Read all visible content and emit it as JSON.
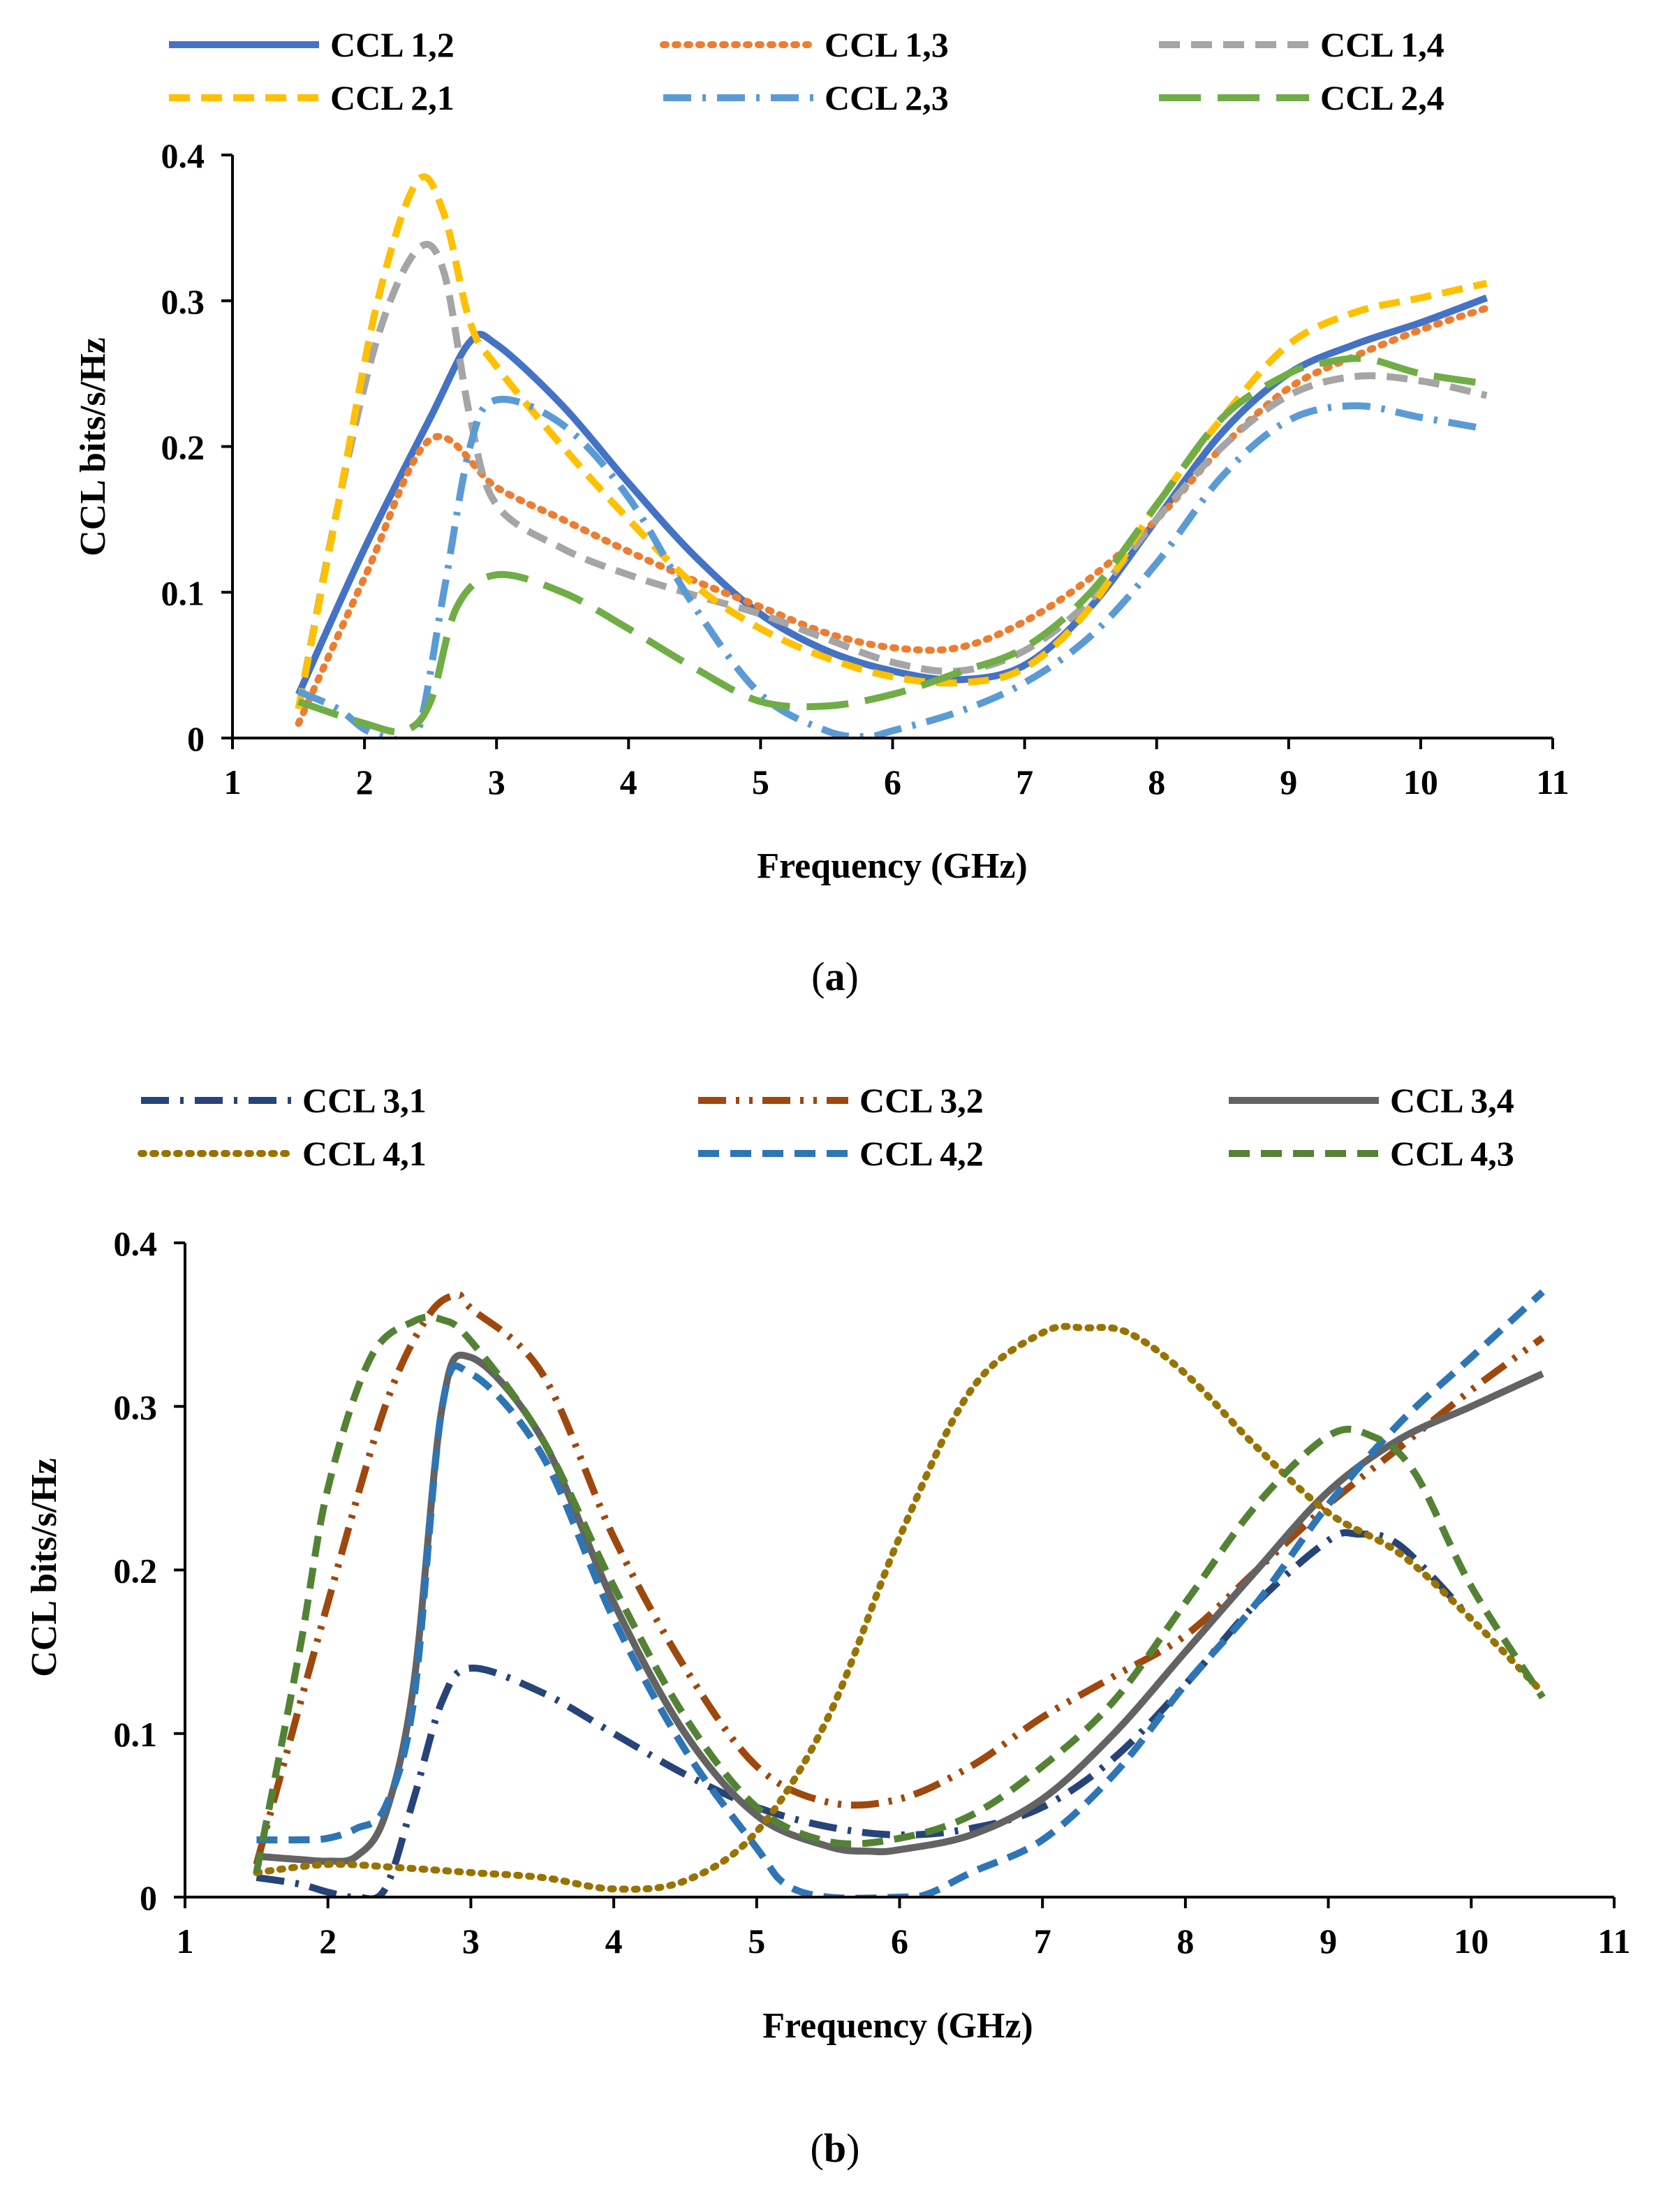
{
  "figure": {
    "captions": [
      "a",
      "b"
    ]
  },
  "chart_data": [
    {
      "type": "line",
      "panel": "(a)",
      "title": "",
      "xlabel": "Frequency (GHz)",
      "ylabel": "CCL bits/s/Hz",
      "xlim": [
        1,
        11
      ],
      "ylim": [
        0,
        0.4
      ],
      "xticks": [
        "1",
        "2",
        "3",
        "4",
        "5",
        "6",
        "7",
        "8",
        "9",
        "10",
        "11"
      ],
      "yticks": [
        "0",
        "0.1",
        "0.2",
        "0.3",
        "0.4"
      ],
      "grid": false,
      "legend_position": "top",
      "series": [
        {
          "name": "CCL 1,2",
          "color": "#4472C4",
          "style": "solid",
          "x": [
            1.5,
            2.0,
            2.5,
            2.8,
            3.0,
            3.5,
            4.0,
            4.5,
            5.0,
            5.5,
            6.0,
            6.5,
            7.0,
            7.5,
            8.0,
            8.5,
            9.0,
            9.5,
            10.0,
            10.5
          ],
          "y": [
            0.03,
            0.13,
            0.22,
            0.272,
            0.27,
            0.228,
            0.175,
            0.125,
            0.085,
            0.06,
            0.046,
            0.04,
            0.05,
            0.09,
            0.15,
            0.21,
            0.25,
            0.27,
            0.285,
            0.302
          ]
        },
        {
          "name": "CCL 1,3",
          "color": "#ED7D31",
          "style": "dotted",
          "x": [
            1.5,
            2.0,
            2.5,
            3.0,
            3.5,
            4.0,
            4.5,
            5.0,
            5.5,
            6.0,
            6.5,
            7.0,
            7.5,
            8.0,
            8.5,
            9.0,
            9.5,
            10.0,
            10.5
          ],
          "y": [
            0.01,
            0.11,
            0.205,
            0.172,
            0.15,
            0.128,
            0.108,
            0.09,
            0.072,
            0.062,
            0.062,
            0.08,
            0.11,
            0.15,
            0.2,
            0.24,
            0.262,
            0.28,
            0.295
          ]
        },
        {
          "name": "CCL 1,4",
          "color": "#A5A5A5",
          "style": "dashed",
          "x": [
            1.5,
            1.8,
            2.1,
            2.4,
            2.6,
            2.8,
            3.0,
            3.5,
            4.0,
            4.5,
            5.0,
            5.5,
            6.0,
            6.5,
            7.0,
            7.5,
            8.0,
            8.5,
            9.0,
            9.5,
            10.0,
            10.5
          ],
          "y": [
            0.02,
            0.16,
            0.275,
            0.335,
            0.32,
            0.22,
            0.16,
            0.13,
            0.112,
            0.098,
            0.085,
            0.068,
            0.052,
            0.046,
            0.06,
            0.095,
            0.15,
            0.2,
            0.235,
            0.248,
            0.245,
            0.235
          ]
        },
        {
          "name": "CCL 2,1",
          "color": "#FFC000",
          "style": "dashed",
          "x": [
            1.5,
            1.8,
            2.1,
            2.4,
            2.6,
            2.8,
            3.0,
            3.5,
            4.0,
            4.5,
            5.0,
            5.5,
            6.0,
            6.5,
            7.0,
            7.5,
            8.0,
            8.5,
            9.0,
            9.5,
            10.0,
            10.5
          ],
          "y": [
            0.02,
            0.16,
            0.3,
            0.382,
            0.36,
            0.285,
            0.255,
            0.2,
            0.15,
            0.105,
            0.075,
            0.055,
            0.042,
            0.038,
            0.048,
            0.09,
            0.16,
            0.22,
            0.27,
            0.292,
            0.302,
            0.312
          ]
        },
        {
          "name": "CCL 2,3",
          "color": "#5B9BD5",
          "style": "dashdot",
          "x": [
            1.5,
            1.8,
            2.0,
            2.2,
            2.4,
            2.6,
            2.8,
            3.0,
            3.5,
            4.0,
            4.5,
            5.0,
            5.5,
            5.8,
            6.0,
            6.5,
            7.0,
            7.5,
            8.0,
            8.5,
            9.0,
            9.5,
            10.0,
            10.5
          ],
          "y": [
            0.032,
            0.02,
            0.006,
            0.0,
            0.003,
            0.1,
            0.2,
            0.232,
            0.215,
            0.165,
            0.09,
            0.03,
            0.005,
            0.001,
            0.005,
            0.018,
            0.038,
            0.07,
            0.12,
            0.18,
            0.218,
            0.228,
            0.22,
            0.212
          ]
        },
        {
          "name": "CCL 2,4",
          "color": "#70AD47",
          "style": "longdash",
          "x": [
            1.5,
            2.0,
            2.3,
            2.5,
            2.7,
            3.0,
            3.5,
            4.0,
            4.5,
            5.0,
            5.5,
            6.0,
            6.5,
            7.0,
            7.5,
            8.0,
            8.5,
            9.0,
            9.3,
            9.6,
            10.0,
            10.5
          ],
          "y": [
            0.025,
            0.01,
            0.005,
            0.025,
            0.09,
            0.112,
            0.1,
            0.075,
            0.048,
            0.025,
            0.022,
            0.03,
            0.045,
            0.062,
            0.1,
            0.16,
            0.22,
            0.25,
            0.258,
            0.26,
            0.25,
            0.243
          ]
        }
      ]
    },
    {
      "type": "line",
      "panel": "(b)",
      "title": "",
      "xlabel": "Frequency (GHz)",
      "ylabel": "CCL bits/s/Hz",
      "xlim": [
        1,
        11
      ],
      "ylim": [
        0,
        0.4
      ],
      "xticks": [
        "1",
        "2",
        "3",
        "4",
        "5",
        "6",
        "7",
        "8",
        "9",
        "10",
        "11"
      ],
      "yticks": [
        "0",
        "0.1",
        "0.2",
        "0.3",
        "0.4"
      ],
      "grid": false,
      "legend_position": "top",
      "series": [
        {
          "name": "CCL 3,1",
          "color": "#264478",
          "style": "dashdot",
          "x": [
            1.5,
            1.8,
            2.0,
            2.2,
            2.4,
            2.6,
            2.8,
            3.0,
            3.5,
            4.0,
            4.5,
            5.0,
            5.5,
            6.0,
            6.5,
            7.0,
            7.5,
            8.0,
            8.5,
            9.0,
            9.2,
            9.5,
            10.0
          ],
          "y": [
            0.012,
            0.008,
            0.003,
            0.0,
            0.005,
            0.06,
            0.12,
            0.14,
            0.125,
            0.1,
            0.075,
            0.055,
            0.043,
            0.038,
            0.042,
            0.055,
            0.085,
            0.13,
            0.18,
            0.218,
            0.222,
            0.215,
            0.17
          ]
        },
        {
          "name": "CCL 3,2",
          "color": "#9E480E",
          "style": "dashdotdot",
          "x": [
            1.5,
            2.0,
            2.4,
            2.7,
            2.9,
            3.0,
            3.5,
            4.0,
            4.5,
            5.0,
            5.5,
            6.0,
            6.5,
            7.0,
            7.5,
            8.0,
            8.5,
            9.0,
            9.5,
            10.0,
            10.5
          ],
          "y": [
            0.02,
            0.18,
            0.3,
            0.355,
            0.368,
            0.36,
            0.32,
            0.22,
            0.14,
            0.08,
            0.058,
            0.06,
            0.08,
            0.11,
            0.135,
            0.16,
            0.2,
            0.24,
            0.275,
            0.31,
            0.342
          ]
        },
        {
          "name": "CCL 3,4",
          "color": "#636363",
          "style": "solid",
          "x": [
            1.5,
            1.8,
            2.0,
            2.2,
            2.4,
            2.6,
            2.8,
            3.0,
            3.5,
            4.0,
            4.5,
            5.0,
            5.5,
            5.8,
            6.0,
            6.5,
            7.0,
            7.5,
            8.0,
            8.5,
            9.0,
            9.5,
            10.0,
            10.5
          ],
          "y": [
            0.025,
            0.023,
            0.022,
            0.025,
            0.05,
            0.13,
            0.3,
            0.33,
            0.28,
            0.18,
            0.1,
            0.05,
            0.031,
            0.028,
            0.029,
            0.038,
            0.06,
            0.1,
            0.15,
            0.2,
            0.248,
            0.28,
            0.3,
            0.32
          ]
        },
        {
          "name": "CCL 4,1",
          "color": "#997300",
          "style": "dotted",
          "x": [
            1.5,
            2.0,
            2.5,
            3.0,
            3.5,
            4.0,
            4.5,
            5.0,
            5.5,
            6.0,
            6.5,
            7.0,
            7.3,
            7.6,
            8.0,
            8.5,
            9.0,
            9.5,
            10.0,
            10.5
          ],
          "y": [
            0.015,
            0.02,
            0.018,
            0.015,
            0.012,
            0.005,
            0.01,
            0.04,
            0.11,
            0.22,
            0.31,
            0.345,
            0.348,
            0.345,
            0.32,
            0.275,
            0.235,
            0.21,
            0.17,
            0.125
          ]
        },
        {
          "name": "CCL 4,2",
          "color": "#2E75B6",
          "style": "dashed",
          "x": [
            1.5,
            1.8,
            2.0,
            2.2,
            2.4,
            2.6,
            2.8,
            3.0,
            3.5,
            4.0,
            4.5,
            5.0,
            5.2,
            5.5,
            6.0,
            6.2,
            6.5,
            7.0,
            7.5,
            8.0,
            8.5,
            9.0,
            9.5,
            10.0,
            10.5
          ],
          "y": [
            0.035,
            0.035,
            0.036,
            0.042,
            0.055,
            0.12,
            0.3,
            0.32,
            0.27,
            0.17,
            0.09,
            0.03,
            0.008,
            0.0,
            0.0,
            0.002,
            0.015,
            0.035,
            0.075,
            0.13,
            0.18,
            0.24,
            0.29,
            0.33,
            0.37
          ]
        },
        {
          "name": "CCL 4,3",
          "color": "#548235",
          "style": "dashed",
          "x": [
            1.5,
            1.8,
            2.0,
            2.3,
            2.6,
            2.8,
            3.0,
            3.5,
            4.0,
            4.5,
            5.0,
            5.5,
            6.0,
            6.5,
            7.0,
            7.5,
            8.0,
            8.5,
            9.0,
            9.3,
            9.6,
            10.0,
            10.5
          ],
          "y": [
            0.015,
            0.15,
            0.25,
            0.33,
            0.352,
            0.353,
            0.34,
            0.28,
            0.19,
            0.11,
            0.055,
            0.034,
            0.036,
            0.05,
            0.08,
            0.12,
            0.18,
            0.24,
            0.282,
            0.282,
            0.26,
            0.19,
            0.122
          ]
        }
      ]
    }
  ]
}
